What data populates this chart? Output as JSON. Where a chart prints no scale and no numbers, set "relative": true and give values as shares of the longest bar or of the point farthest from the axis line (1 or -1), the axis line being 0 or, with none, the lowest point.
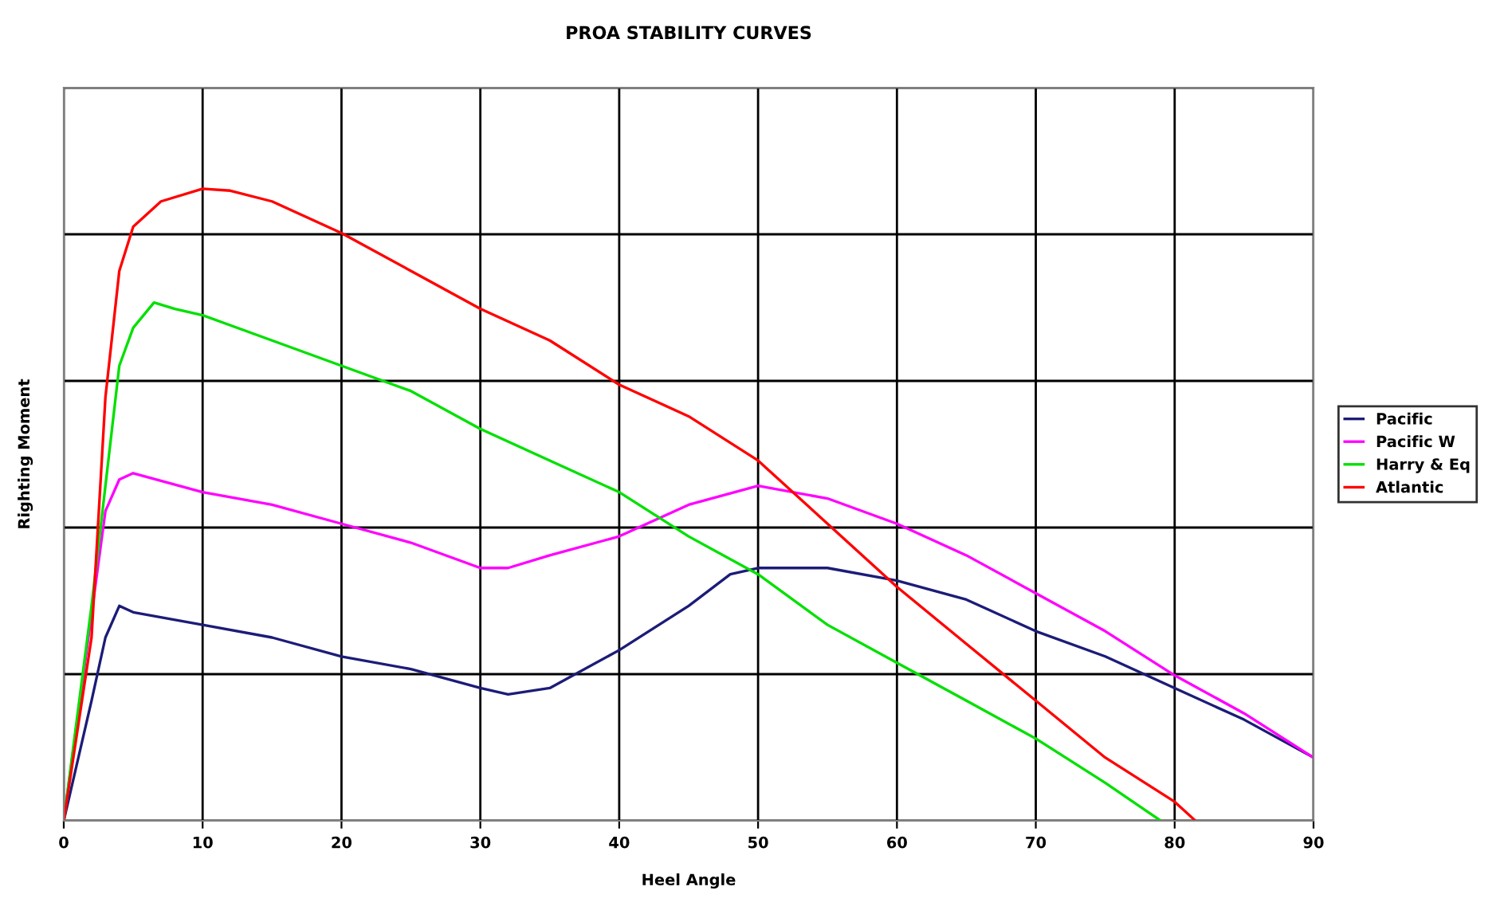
{
  "chart_data": {
    "type": "line",
    "title": "PROA STABILITY CURVES",
    "xlabel": "Heel Angle",
    "ylabel": "Righting Moment",
    "relative": true,
    "xlim": [
      0,
      90
    ],
    "xticks": [
      0,
      10,
      20,
      30,
      40,
      50,
      60,
      70,
      80,
      90
    ],
    "grid": true,
    "legend": "right",
    "marker": "none",
    "line_style": "solid",
    "series": [
      {
        "name": "Pacific",
        "color": "#1c1c78",
        "x": [
          0,
          2,
          3,
          4,
          5,
          10,
          15,
          20,
          25,
          30,
          32,
          35,
          40,
          45,
          48,
          50,
          55,
          60,
          65,
          70,
          75,
          80,
          85,
          90
        ],
        "values": [
          0,
          0.19,
          0.29,
          0.34,
          0.33,
          0.31,
          0.29,
          0.26,
          0.24,
          0.21,
          0.2,
          0.21,
          0.27,
          0.34,
          0.39,
          0.4,
          0.4,
          0.38,
          0.35,
          0.3,
          0.26,
          0.21,
          0.16,
          0.1
        ]
      },
      {
        "name": "Pacific W",
        "color": "#ff00ff",
        "x": [
          0,
          3,
          4,
          5,
          10,
          15,
          20,
          25,
          30,
          32,
          35,
          40,
          45,
          50,
          55,
          60,
          65,
          70,
          75,
          80,
          85,
          90
        ],
        "values": [
          0,
          0.49,
          0.54,
          0.55,
          0.52,
          0.5,
          0.47,
          0.44,
          0.4,
          0.4,
          0.42,
          0.45,
          0.5,
          0.53,
          0.51,
          0.47,
          0.42,
          0.36,
          0.3,
          0.23,
          0.17,
          0.1
        ]
      },
      {
        "name": "Harry & Eq",
        "color": "#00e000",
        "x": [
          0,
          2,
          4,
          5,
          6.5,
          8,
          10,
          15,
          20,
          25,
          30,
          35,
          40,
          45,
          50,
          55,
          60,
          65,
          70,
          75,
          79
        ],
        "values": [
          0,
          0.34,
          0.72,
          0.78,
          0.82,
          0.81,
          0.8,
          0.76,
          0.72,
          0.68,
          0.62,
          0.57,
          0.52,
          0.45,
          0.39,
          0.31,
          0.25,
          0.19,
          0.13,
          0.06,
          0
        ]
      },
      {
        "name": "Atlantic",
        "color": "#ff0000",
        "x": [
          0,
          2,
          3,
          4,
          5,
          7,
          10,
          12,
          15,
          20,
          25,
          30,
          35,
          40,
          45,
          50,
          55,
          60,
          65,
          70,
          75,
          80,
          81.5
        ],
        "values": [
          0,
          0.29,
          0.67,
          0.87,
          0.94,
          0.98,
          1,
          0.997,
          0.98,
          0.93,
          0.87,
          0.81,
          0.76,
          0.69,
          0.64,
          0.57,
          0.47,
          0.37,
          0.28,
          0.19,
          0.1,
          0.03,
          0
        ]
      }
    ]
  }
}
